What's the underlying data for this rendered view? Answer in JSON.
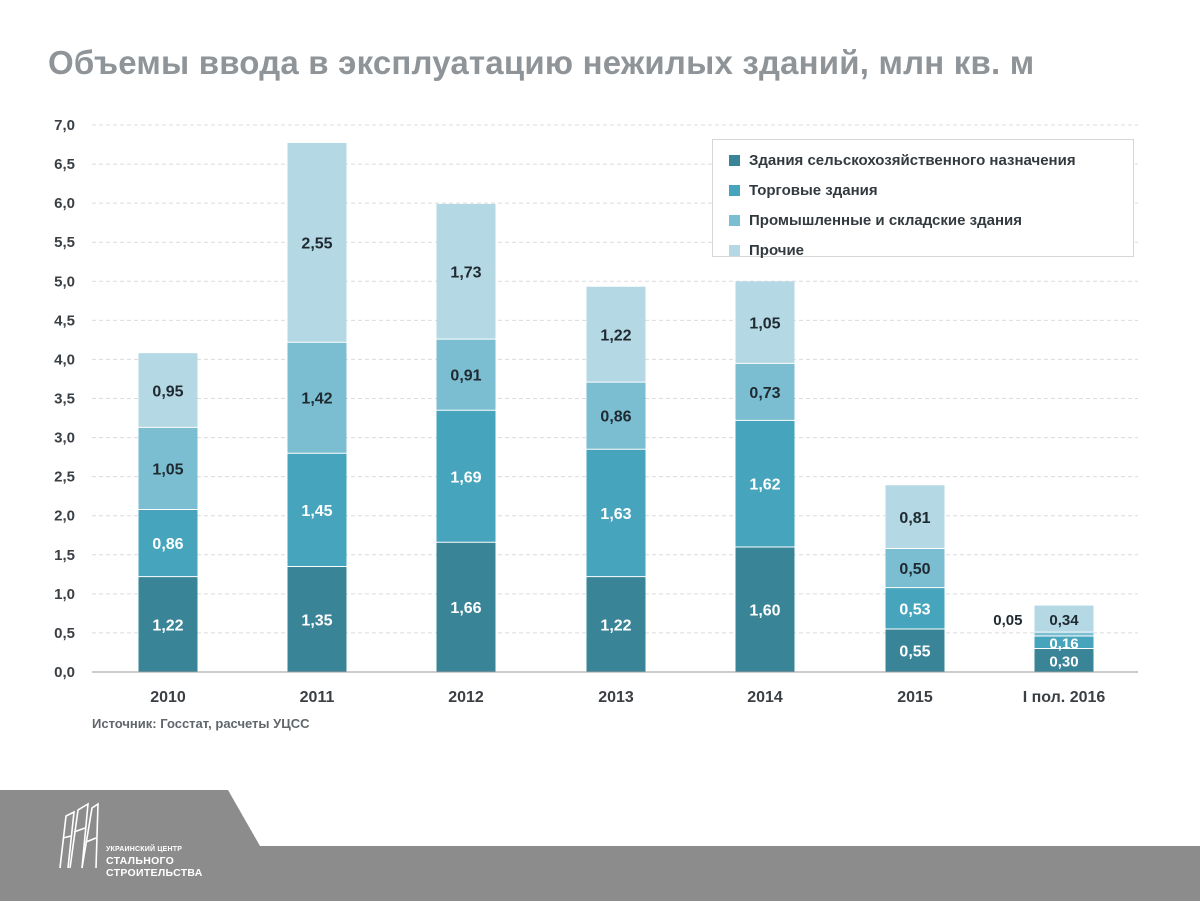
{
  "title": "Объемы ввода в эксплуатацию нежилых зданий, млн кв. м",
  "source": "Источник: Госстат, расчеты УЦСС",
  "logo": {
    "line1": "УКРАИНСКИЙ ЦЕНТР",
    "line2": "СТАЛЬНОГО",
    "line3": "СТРОИТЕЛЬСТВА"
  },
  "colors": {
    "agricultural": "#3a8498",
    "trade": "#46a4bd",
    "industrial": "#7bbdd1",
    "other": "#b4d8e4",
    "title": "#8f9498",
    "grid": "#dcdcdc",
    "footer": "#8c8c8c"
  },
  "chart_data": {
    "type": "bar",
    "stacked": true,
    "title": "Объемы ввода в эксплуатацию нежилых зданий, млн кв. м",
    "xlabel": "",
    "ylabel": "",
    "ylim": [
      0,
      7
    ],
    "yticks": [
      "0,0",
      "0,5",
      "1,0",
      "1,5",
      "2,0",
      "2,5",
      "3,0",
      "3,5",
      "4,0",
      "4,5",
      "5,0",
      "5,5",
      "6,0",
      "6,5",
      "7,0"
    ],
    "grid": true,
    "legend_position": "top-right",
    "categories": [
      "2010",
      "2011",
      "2012",
      "2013",
      "2014",
      "2015",
      "I пол. 2016"
    ],
    "series": [
      {
        "name": "Здания сельскохозяйственного назначения",
        "color": "#3a8498",
        "values": [
          1.22,
          1.35,
          1.66,
          1.22,
          1.6,
          0.55,
          0.3
        ],
        "labels": [
          "1,22",
          "1,35",
          "1,66",
          "1,22",
          "1,60",
          "0,55",
          "0,30"
        ]
      },
      {
        "name": "Торговые здания",
        "color": "#46a4bd",
        "values": [
          0.86,
          1.45,
          1.69,
          1.63,
          1.62,
          0.53,
          0.16
        ],
        "labels": [
          "0,86",
          "1,45",
          "1,69",
          "1,63",
          "1,62",
          "0,53",
          "0,16"
        ]
      },
      {
        "name": "Промышленные и складские здания",
        "color": "#7bbdd1",
        "values": [
          1.05,
          1.42,
          0.91,
          0.86,
          0.73,
          0.5,
          0.05
        ],
        "labels": [
          "1,05",
          "1,42",
          "0,91",
          "0,86",
          "0,73",
          "0,50",
          "0,05"
        ]
      },
      {
        "name": "Прочие",
        "color": "#b4d8e4",
        "values": [
          0.95,
          2.55,
          1.73,
          1.22,
          1.05,
          0.81,
          0.34
        ],
        "labels": [
          "0,95",
          "2,55",
          "1,73",
          "1,22",
          "1,05",
          "0,81",
          "0,34"
        ]
      }
    ]
  }
}
